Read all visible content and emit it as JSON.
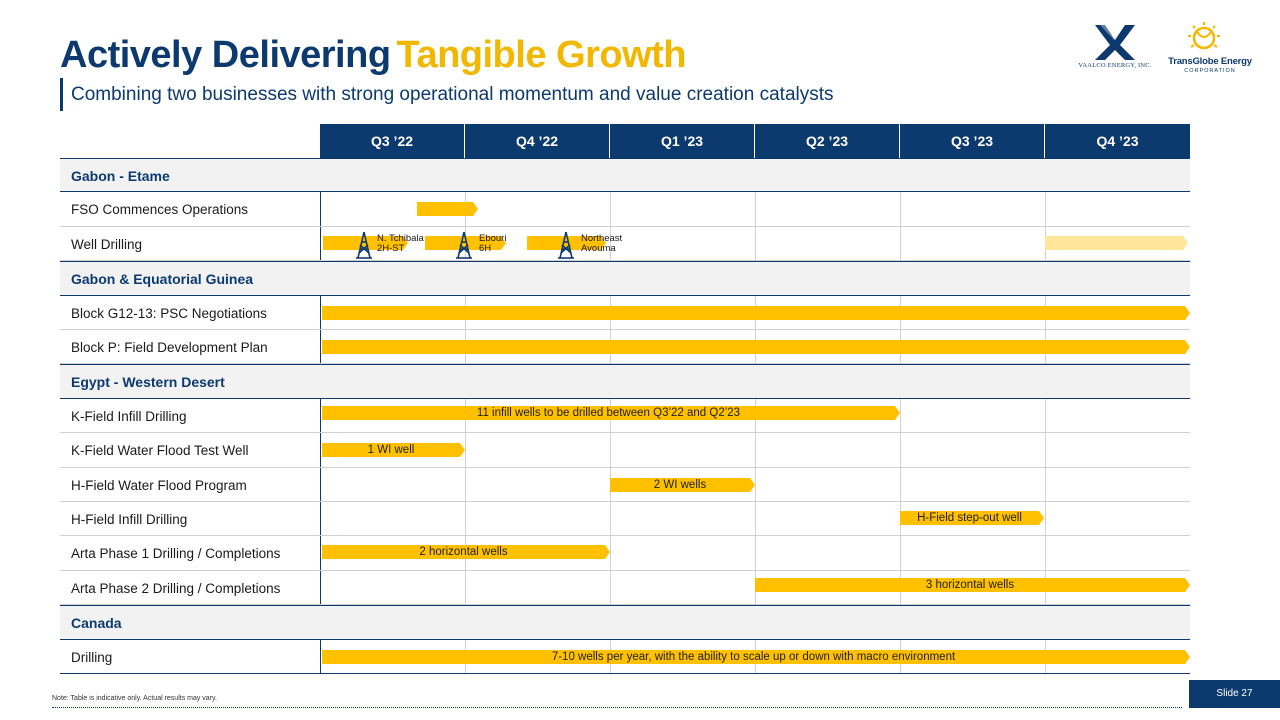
{
  "header": {
    "title_part1": "Actively Delivering",
    "title_part2": "Tangible Growth",
    "subtitle": "Combining two businesses with strong operational momentum and value creation catalysts"
  },
  "logos": {
    "vaalco_text": "VAALCO ENERGY, INC.",
    "transglobe_text": "TransGlobe Energy",
    "transglobe_sub": "CORPORATION"
  },
  "colors": {
    "navy": "#0d3a6e",
    "gold": "#ffc000",
    "pale_gold": "#ffe699",
    "title_gold": "#f2b800"
  },
  "quarters": [
    "Q3 ’22",
    "Q4 ’22",
    "Q1 ’23",
    "Q2 ’23",
    "Q3 ’23",
    "Q4 ’23"
  ],
  "timeline": {
    "sections": [
      {
        "name": "Gabon - Etame",
        "rows": [
          {
            "label": "FSO Commences Operations"
          },
          {
            "label": "Well Drilling",
            "rigs": [
              {
                "label_line1": "N. Tchibala",
                "label_line2": "2H-ST"
              },
              {
                "label_line1": "Ebouri",
                "label_line2": "6H"
              },
              {
                "label_line1": "Northeast",
                "label_line2": "Avouma"
              }
            ]
          }
        ]
      },
      {
        "name": "Gabon & Equatorial Guinea",
        "rows": [
          {
            "label": "Block G12-13: PSC Negotiations"
          },
          {
            "label": "Block P: Field Development Plan"
          }
        ]
      },
      {
        "name": "Egypt - Western Desert",
        "rows": [
          {
            "label": "K-Field Infill Drilling",
            "bar_text": "11 infill wells to be drilled between Q3’22 and Q2’23"
          },
          {
            "label": "K-Field Water Flood Test Well",
            "bar_text": "1 WI well"
          },
          {
            "label": "H-Field Water Flood Program",
            "bar_text": "2 WI wells"
          },
          {
            "label": "H-Field Infill Drilling",
            "bar_text": "H-Field step-out well"
          },
          {
            "label": "Arta Phase 1 Drilling / Completions",
            "bar_text": "2 horizontal wells"
          },
          {
            "label": "Arta Phase 2 Drilling / Completions",
            "bar_text": "3 horizontal wells"
          }
        ]
      },
      {
        "name": "Canada",
        "rows": [
          {
            "label": "Drilling",
            "bar_text": "7-10 wells per year, with the ability to scale up or down with macro environment"
          }
        ]
      }
    ]
  },
  "footer": {
    "note": "Note: Table is indicative only. Actual results may vary.",
    "slide_number": "Slide 27"
  }
}
